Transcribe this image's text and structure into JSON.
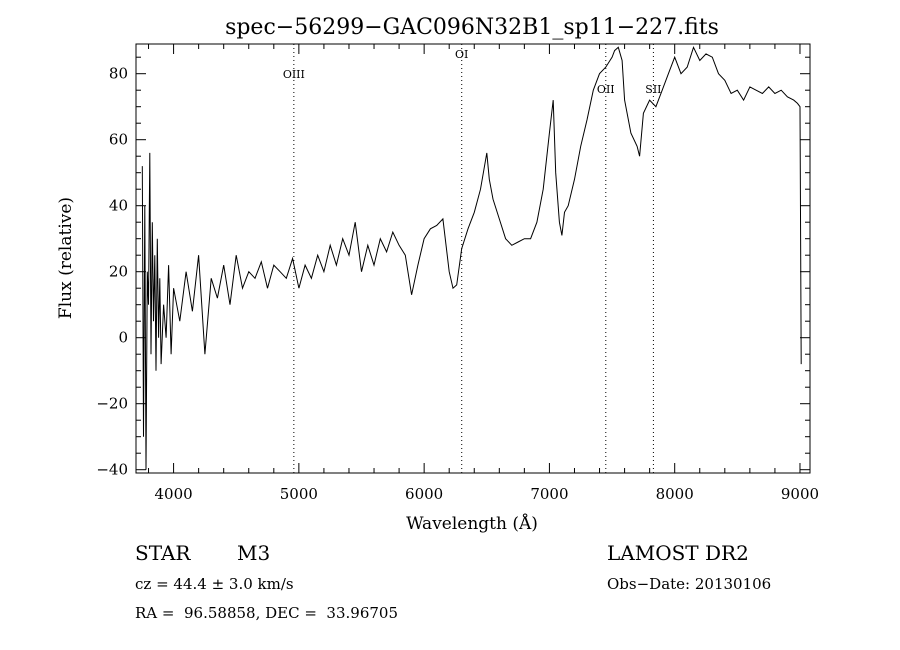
{
  "chart_data": {
    "type": "line",
    "title": "spec−56299−GAC096N32B1_sp11−227.fits",
    "xlabel": "Wavelength (Å)",
    "ylabel": "Flux (relative)",
    "xlim": [
      3700,
      9080
    ],
    "ylim": [
      -41,
      89
    ],
    "xticks": [
      4000,
      5000,
      6000,
      7000,
      8000,
      9000
    ],
    "yticks": [
      -40,
      -20,
      0,
      20,
      40,
      60,
      80
    ],
    "ytick_labels": [
      "−40",
      "−20",
      "0",
      "20",
      "40",
      "60",
      "80"
    ],
    "grid": false,
    "series": [
      {
        "x": [
          3750,
          3760,
          3770,
          3780,
          3790,
          3800,
          3810,
          3820,
          3830,
          3840,
          3850,
          3860,
          3870,
          3880,
          3890,
          3900,
          3920,
          3940,
          3960,
          3980,
          4000,
          4050,
          4100,
          4150,
          4200,
          4250,
          4300,
          4350,
          4400,
          4450,
          4500,
          4550,
          4600,
          4650,
          4700,
          4750,
          4800,
          4850,
          4900,
          4950,
          5000,
          5050,
          5100,
          5150,
          5200,
          5250,
          5300,
          5350,
          5400,
          5450,
          5500,
          5550,
          5600,
          5650,
          5700,
          5750,
          5800,
          5850,
          5900,
          5950,
          6000,
          6050,
          6100,
          6150,
          6200,
          6230,
          6260,
          6300,
          6350,
          6400,
          6450,
          6500,
          6520,
          6550,
          6600,
          6650,
          6700,
          6750,
          6800,
          6850,
          6900,
          6950,
          7000,
          7030,
          7050,
          7080,
          7100,
          7120,
          7150,
          7200,
          7250,
          7300,
          7350,
          7400,
          7450,
          7500,
          7520,
          7550,
          7580,
          7600,
          7650,
          7700,
          7720,
          7750,
          7800,
          7850,
          7900,
          7950,
          8000,
          8050,
          8100,
          8150,
          8200,
          8250,
          8300,
          8350,
          8400,
          8450,
          8500,
          8550,
          8600,
          8650,
          8700,
          8750,
          8800,
          8850,
          8900,
          8950,
          8980,
          9000,
          9010
        ],
        "y": [
          52,
          -30,
          40,
          -40,
          20,
          10,
          56,
          -5,
          35,
          5,
          25,
          -10,
          30,
          0,
          18,
          -8,
          10,
          0,
          22,
          -5,
          15,
          5,
          20,
          8,
          25,
          -5,
          18,
          12,
          22,
          10,
          25,
          15,
          20,
          18,
          23,
          15,
          22,
          20,
          18,
          24,
          15,
          22,
          18,
          25,
          20,
          28,
          22,
          30,
          25,
          35,
          20,
          28,
          22,
          30,
          26,
          32,
          28,
          25,
          13,
          22,
          30,
          33,
          34,
          36,
          20,
          15,
          16,
          27,
          33,
          38,
          45,
          56,
          48,
          42,
          36,
          30,
          28,
          29,
          30,
          30,
          35,
          45,
          62,
          72,
          50,
          35,
          31,
          38,
          40,
          48,
          58,
          66,
          75,
          80,
          82,
          85,
          87,
          88,
          84,
          72,
          62,
          58,
          55,
          68,
          72,
          70,
          75,
          80,
          85,
          80,
          82,
          88,
          84,
          86,
          85,
          80,
          78,
          74,
          75,
          72,
          76,
          75,
          74,
          76,
          74,
          75,
          73,
          72,
          71,
          70,
          -8
        ]
      }
    ],
    "line_markers": [
      {
        "label": "OIII",
        "x": 4960
      },
      {
        "label": "OI",
        "x": 6300
      },
      {
        "label": "OII",
        "x": 7450
      },
      {
        "label": "SII",
        "x": 7830
      }
    ]
  },
  "info": {
    "object_type": "STAR",
    "subclass": "M3",
    "survey": "LAMOST DR2",
    "cz": "cz = 44.4 ± 3.0 km/s",
    "obs_date": "Obs−Date: 20130106",
    "coords": "RA =  96.58858, DEC =  33.96705"
  }
}
